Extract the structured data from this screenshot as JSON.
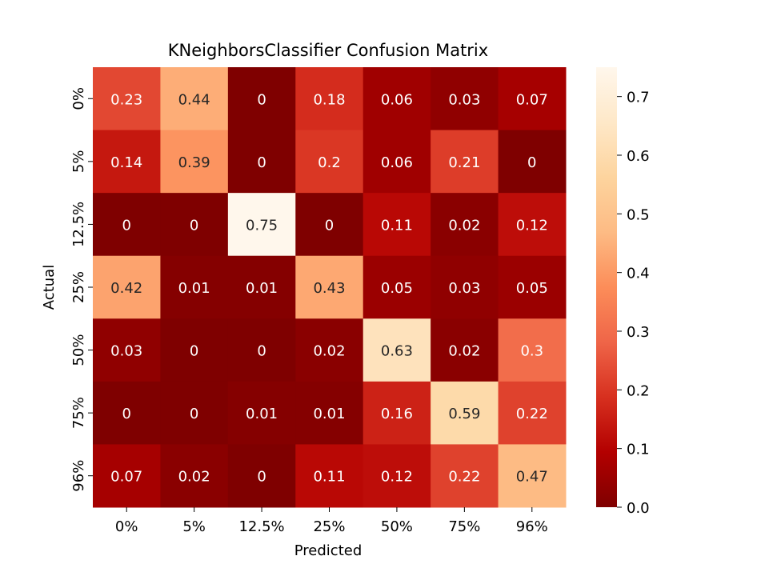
{
  "chart_data": {
    "type": "heatmap",
    "title": "KNeighborsClassifier Confusion Matrix",
    "xlabel": "Predicted",
    "ylabel": "Actual",
    "x_categories": [
      "0%",
      "5%",
      "12.5%",
      "25%",
      "50%",
      "75%",
      "96%"
    ],
    "y_categories": [
      "0%",
      "5%",
      "12.5%",
      "25%",
      "50%",
      "75%",
      "96%"
    ],
    "values": [
      [
        0.23,
        0.44,
        0,
        0.18,
        0.06,
        0.03,
        0.07
      ],
      [
        0.14,
        0.39,
        0,
        0.2,
        0.06,
        0.21,
        0
      ],
      [
        0,
        0,
        0.75,
        0,
        0.11,
        0.02,
        0.12
      ],
      [
        0.42,
        0.01,
        0.01,
        0.43,
        0.05,
        0.03,
        0.05
      ],
      [
        0.03,
        0,
        0,
        0.02,
        0.63,
        0.02,
        0.3
      ],
      [
        0,
        0,
        0.01,
        0.01,
        0.16,
        0.59,
        0.22
      ],
      [
        0.07,
        0.02,
        0,
        0.11,
        0.12,
        0.22,
        0.47
      ]
    ],
    "colorbar": {
      "min": 0.0,
      "max": 0.75,
      "ticks": [
        0.0,
        0.1,
        0.2,
        0.3,
        0.4,
        0.5,
        0.6,
        0.7
      ],
      "tick_labels": [
        "0.0",
        "0.1",
        "0.2",
        "0.3",
        "0.4",
        "0.5",
        "0.6",
        "0.7"
      ]
    },
    "colormap": "OrRd_r",
    "colormap_stops": [
      "#7f0000",
      "#b30000",
      "#d7301f",
      "#ef6548",
      "#fc8d59",
      "#fdbb84",
      "#fdd49e",
      "#fee8c8",
      "#fff7ec"
    ],
    "annotation_dark_color": "#262626",
    "annotation_light_color": "#ffffff"
  }
}
